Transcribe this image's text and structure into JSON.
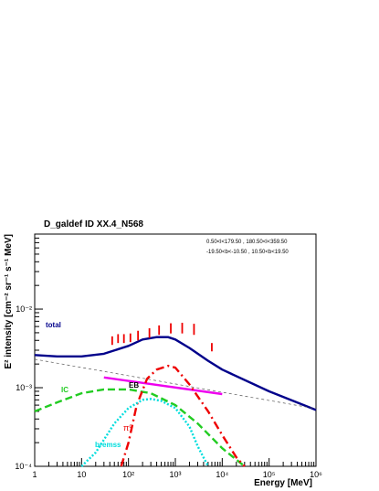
{
  "chart_data": {
    "type": "line",
    "title": "D_galdef ID XX.4_N568",
    "region_line1": "0.50<l<179.50 , 180.50<l<359.50",
    "region_line2": "-19.50<b<-10.50 , 10.50<b<19.50",
    "xlabel": "Energy [MeV]",
    "ylabel": "E² intensity [cm⁻² sr⁻¹ s⁻¹ MeV]",
    "x_scale": "log",
    "y_scale": "log",
    "xlim": [
      1,
      1000000
    ],
    "ylim": [
      0.0001,
      0.09
    ],
    "x_tick_labels": [
      "1",
      "10",
      "10²",
      "10³",
      "10⁴",
      "10⁵",
      "10⁶"
    ],
    "y_tick_labels": [
      "10⁻⁴",
      "10⁻³",
      "10⁻²"
    ],
    "series": [
      {
        "name": "total",
        "color": "#00008b",
        "style": "solid",
        "x": [
          1,
          3,
          10,
          30,
          100,
          200,
          400,
          700,
          1000,
          2000,
          5000,
          10000,
          100000,
          1000000
        ],
        "y": [
          0.0026,
          0.0025,
          0.0025,
          0.0027,
          0.0034,
          0.0041,
          0.0044,
          0.0044,
          0.0041,
          0.0032,
          0.0022,
          0.0017,
          0.0009,
          0.00052
        ]
      },
      {
        "name": "IC",
        "color": "#22cc22",
        "style": "dashed",
        "x": [
          1,
          3,
          10,
          30,
          100,
          300,
          1000,
          3000,
          10000,
          30000
        ],
        "y": [
          0.0005,
          0.00065,
          0.00085,
          0.00095,
          0.00095,
          0.00085,
          0.0006,
          0.00035,
          0.00017,
          0.0001
        ]
      },
      {
        "name": "EB",
        "color": "#ee00ee",
        "style": "solid",
        "x": [
          30,
          10000
        ],
        "y": [
          0.00135,
          0.00083
        ]
      },
      {
        "name": "π⁰",
        "color": "#ee0000",
        "style": "dashdot",
        "x": [
          70,
          100,
          150,
          250,
          400,
          700,
          1000,
          2000,
          5000,
          10000,
          20000,
          30000
        ],
        "y": [
          0.0001,
          0.0002,
          0.0006,
          0.0013,
          0.0017,
          0.0019,
          0.0018,
          0.0011,
          0.0005,
          0.00025,
          0.00013,
          0.0001
        ]
      },
      {
        "name": "bremss",
        "color": "#00dddd",
        "style": "dotted",
        "x": [
          10,
          20,
          50,
          100,
          200,
          300,
          500,
          1000,
          2000,
          3000,
          5000
        ],
        "y": [
          0.0001,
          0.00015,
          0.00035,
          0.00055,
          0.0007,
          0.00072,
          0.00068,
          0.00055,
          0.00032,
          0.00018,
          0.0001
        ]
      },
      {
        "name": "",
        "color": "#555555",
        "style": "thin-dashed",
        "x": [
          1,
          1000000
        ],
        "y": [
          0.0023,
          0.00054
        ]
      }
    ],
    "data_points": {
      "color": "#ee0000",
      "x": [
        45,
        60,
        80,
        110,
        160,
        280,
        450,
        800,
        1400,
        2500,
        6000
      ],
      "y_low": [
        0.0035,
        0.0037,
        0.0037,
        0.0038,
        0.004,
        0.0043,
        0.0047,
        0.0049,
        0.0049,
        0.0047,
        0.0029
      ],
      "y_high": [
        0.0045,
        0.0048,
        0.0048,
        0.0049,
        0.0053,
        0.0057,
        0.0062,
        0.0066,
        0.0067,
        0.0065,
        0.0037
      ]
    },
    "curve_labels": [
      {
        "text": "total",
        "color": "#00008b"
      },
      {
        "text": "IC",
        "color": "#22cc22"
      },
      {
        "text": "EB",
        "color": "#000000"
      },
      {
        "text": "π⁰",
        "color": "#ee0000"
      },
      {
        "text": "bremss",
        "color": "#00dddd"
      }
    ]
  }
}
